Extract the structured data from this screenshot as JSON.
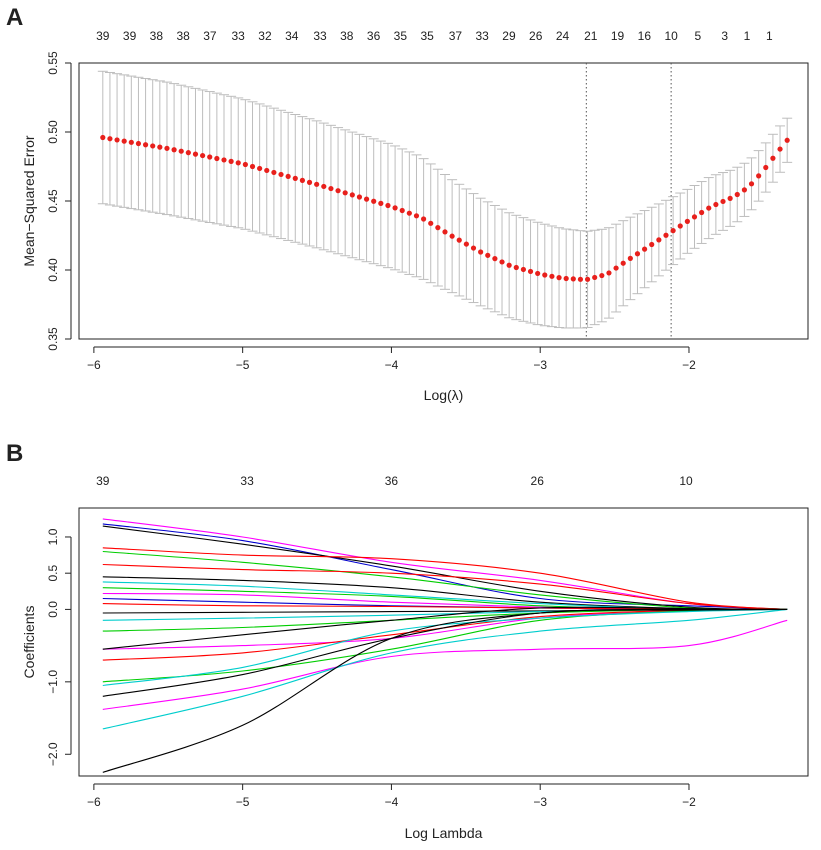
{
  "chart_data": [
    {
      "panel": "A",
      "type": "scatter",
      "title": "",
      "xlabel": "Log(λ)",
      "ylabel": "Mean−Squared Error",
      "xlim": [
        -6.1,
        -1.2
      ],
      "ylim": [
        0.35,
        0.55
      ],
      "x_ticks": [
        -6,
        -5,
        -4,
        -3,
        -2
      ],
      "x_tick_labels": [
        "−6",
        "−5",
        "−4",
        "−3",
        "−2"
      ],
      "y_ticks": [
        0.35,
        0.4,
        0.45,
        0.5,
        0.55
      ],
      "y_tick_labels": [
        "0.35",
        "0.40",
        "0.45",
        "0.50",
        "0.55"
      ],
      "top_axis": {
        "labels": [
          "39",
          "39",
          "38",
          "38",
          "37",
          "33",
          "32",
          "34",
          "33",
          "38",
          "36",
          "35",
          "35",
          "37",
          "33",
          "29",
          "26",
          "24",
          "21",
          "19",
          "16",
          "10",
          "5",
          "3",
          "1",
          "1"
        ],
        "x": [
          -5.94,
          -5.76,
          -5.58,
          -5.4,
          -5.22,
          -5.03,
          -4.85,
          -4.67,
          -4.48,
          -4.3,
          -4.12,
          -3.94,
          -3.76,
          -3.57,
          -3.39,
          -3.21,
          -3.03,
          -2.85,
          -2.66,
          -2.48,
          -2.3,
          -2.12,
          -1.94,
          -1.76,
          -1.61,
          -1.46
        ]
      },
      "reference_lines": [
        {
          "name": "lambda.min",
          "x": -2.69
        },
        {
          "name": "lambda.1se",
          "x": -2.12
        }
      ],
      "mse_curve_keypoints": {
        "x": [
          -5.94,
          -5.5,
          -5.0,
          -4.5,
          -4.0,
          -3.8,
          -3.6,
          -3.4,
          -3.2,
          -3.0,
          -2.85,
          -2.69,
          -2.55,
          -2.4,
          -2.2,
          -2.0,
          -1.85,
          -1.7,
          -1.6,
          -1.5,
          -1.4,
          -1.34
        ],
        "y": [
          0.496,
          0.488,
          0.477,
          0.462,
          0.446,
          0.438,
          0.425,
          0.413,
          0.403,
          0.397,
          0.394,
          0.393,
          0.397,
          0.408,
          0.422,
          0.436,
          0.446,
          0.453,
          0.46,
          0.472,
          0.486,
          0.494
        ],
        "sd": [
          0.048,
          0.048,
          0.047,
          0.046,
          0.045,
          0.044,
          0.041,
          0.039,
          0.038,
          0.037,
          0.036,
          0.035,
          0.033,
          0.03,
          0.026,
          0.023,
          0.022,
          0.02,
          0.019,
          0.018,
          0.017,
          0.016
        ]
      },
      "n_points": 97,
      "point_color": "#e8201c",
      "errorbar_color": "#bdbdbd"
    },
    {
      "panel": "B",
      "type": "line",
      "title": "",
      "xlabel": "Log Lambda",
      "ylabel": "Coefficients",
      "xlim": [
        -6.1,
        -1.2
      ],
      "ylim": [
        -2.3,
        1.4
      ],
      "x_ticks": [
        -6,
        -5,
        -4,
        -3,
        -2
      ],
      "x_tick_labels": [
        "−6",
        "−5",
        "−4",
        "−3",
        "−2"
      ],
      "y_ticks": [
        -2.0,
        -1.0,
        0.0,
        0.5,
        1.0
      ],
      "y_tick_labels": [
        "−2.0",
        "−1.0",
        "0.0",
        "0.5",
        "1.0"
      ],
      "top_axis": {
        "labels": [
          "39",
          "33",
          "36",
          "26",
          "10"
        ],
        "x": [
          -5.94,
          -4.97,
          -4.0,
          -3.02,
          -2.02
        ]
      },
      "x_start": -5.94,
      "x_end": -1.34,
      "series": [
        {
          "name": "s1",
          "color": "#ff00ff",
          "values": [
            1.25,
            1.0,
            0.65,
            0.4,
            0.08,
            0.0
          ]
        },
        {
          "name": "s2",
          "color": "#0000cd",
          "values": [
            1.18,
            0.95,
            0.55,
            0.15,
            0.05,
            0.0
          ]
        },
        {
          "name": "s3",
          "color": "#000000",
          "values": [
            1.15,
            0.9,
            0.6,
            0.25,
            0.03,
            0.0
          ]
        },
        {
          "name": "s4",
          "color": "#ff0000",
          "values": [
            0.85,
            0.75,
            0.7,
            0.5,
            0.1,
            0.0
          ]
        },
        {
          "name": "s5",
          "color": "#00cd00",
          "values": [
            0.8,
            0.65,
            0.45,
            0.2,
            0.02,
            0.0
          ]
        },
        {
          "name": "s6",
          "color": "#ff0000",
          "values": [
            0.62,
            0.55,
            0.5,
            0.35,
            0.08,
            0.0
          ]
        },
        {
          "name": "s7",
          "color": "#000000",
          "values": [
            0.45,
            0.4,
            0.3,
            0.1,
            0.01,
            0.0
          ]
        },
        {
          "name": "s8",
          "color": "#00cdcd",
          "values": [
            0.38,
            0.32,
            0.2,
            0.08,
            0.0,
            0.0
          ]
        },
        {
          "name": "s9",
          "color": "#00cd00",
          "values": [
            0.3,
            0.25,
            0.18,
            0.05,
            0.0,
            0.0
          ]
        },
        {
          "name": "s10",
          "color": "#ff00ff",
          "values": [
            0.22,
            0.2,
            0.1,
            0.03,
            0.0,
            0.0
          ]
        },
        {
          "name": "s11",
          "color": "#0000cd",
          "values": [
            0.15,
            0.1,
            0.05,
            0.02,
            0.0,
            0.0
          ]
        },
        {
          "name": "s12",
          "color": "#ff0000",
          "values": [
            0.08,
            0.05,
            0.04,
            0.02,
            0.0,
            0.0
          ]
        },
        {
          "name": "s13",
          "color": "#000000",
          "values": [
            -0.05,
            -0.04,
            -0.03,
            -0.02,
            0.0,
            0.0
          ]
        },
        {
          "name": "s14",
          "color": "#00cdcd",
          "values": [
            -0.15,
            -0.12,
            -0.08,
            -0.03,
            0.0,
            0.0
          ]
        },
        {
          "name": "s15",
          "color": "#00cd00",
          "values": [
            -0.3,
            -0.25,
            -0.15,
            -0.05,
            0.0,
            0.0
          ]
        },
        {
          "name": "s16",
          "color": "#ff00ff",
          "values": [
            -0.55,
            -0.5,
            -0.4,
            -0.12,
            -0.02,
            0.0
          ]
        },
        {
          "name": "s17",
          "color": "#000000",
          "values": [
            -0.55,
            -0.35,
            -0.15,
            0.02,
            0.01,
            0.0
          ]
        },
        {
          "name": "s18",
          "color": "#ff0000",
          "values": [
            -0.7,
            -0.6,
            -0.35,
            -0.1,
            -0.01,
            0.0
          ]
        },
        {
          "name": "s19",
          "color": "#00cd00",
          "values": [
            -1.0,
            -0.85,
            -0.55,
            -0.15,
            -0.02,
            0.0
          ]
        },
        {
          "name": "s20",
          "color": "#00cdcd",
          "values": [
            -1.05,
            -0.8,
            -0.3,
            -0.12,
            -0.03,
            0.0
          ]
        },
        {
          "name": "s21",
          "color": "#000000",
          "values": [
            -1.2,
            -0.9,
            -0.4,
            -0.05,
            0.0,
            0.0
          ]
        },
        {
          "name": "s22",
          "color": "#ff00ff",
          "values": [
            -1.38,
            -1.1,
            -0.65,
            -0.55,
            -0.5,
            -0.15
          ]
        },
        {
          "name": "s23",
          "color": "#00cdcd",
          "values": [
            -1.65,
            -1.2,
            -0.6,
            -0.3,
            -0.15,
            0.0
          ]
        },
        {
          "name": "s24",
          "color": "#000000",
          "values": [
            -2.25,
            -1.6,
            -0.4,
            -0.05,
            -0.01,
            0.0
          ]
        }
      ],
      "series_x": [
        -5.94,
        -5.0,
        -4.0,
        -3.0,
        -2.0,
        -1.34
      ]
    }
  ],
  "panels": {
    "a_label": "A",
    "b_label": "B"
  }
}
